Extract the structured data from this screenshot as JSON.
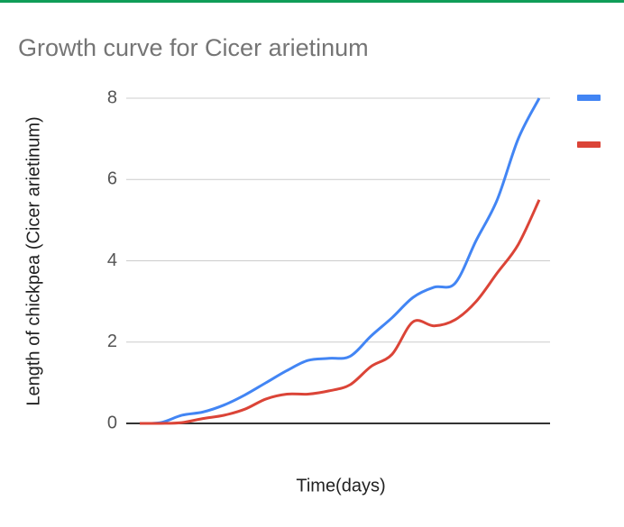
{
  "chart_data": {
    "type": "line",
    "title": "Growth curve for Cicer arietinum",
    "x_label": "Time(days)",
    "y_label": "Length of chickpea (Cicer arietinum)",
    "categories": [
      null,
      null,
      null,
      null,
      null,
      null,
      null,
      null,
      null,
      null,
      null,
      null,
      null,
      null,
      null,
      null,
      null,
      null,
      null,
      null
    ],
    "series": [
      {
        "color": "#4285f4",
        "values": [
          0,
          0.02,
          0.2,
          0.28,
          0.45,
          0.7,
          1.0,
          1.3,
          1.55,
          1.6,
          1.65,
          2.15,
          2.6,
          3.1,
          3.35,
          3.45,
          4.5,
          5.5,
          7.0,
          8.0
        ]
      },
      {
        "color": "#db4437",
        "values": [
          0,
          0,
          0.02,
          0.12,
          0.2,
          0.35,
          0.6,
          0.72,
          0.72,
          0.8,
          0.95,
          1.4,
          1.7,
          2.5,
          2.4,
          2.55,
          3.0,
          3.7,
          4.4,
          5.5
        ]
      }
    ],
    "ylim": [
      0,
      8
    ],
    "yticks": [
      0,
      2,
      4,
      6,
      8
    ],
    "grid": true,
    "legend": "right"
  }
}
